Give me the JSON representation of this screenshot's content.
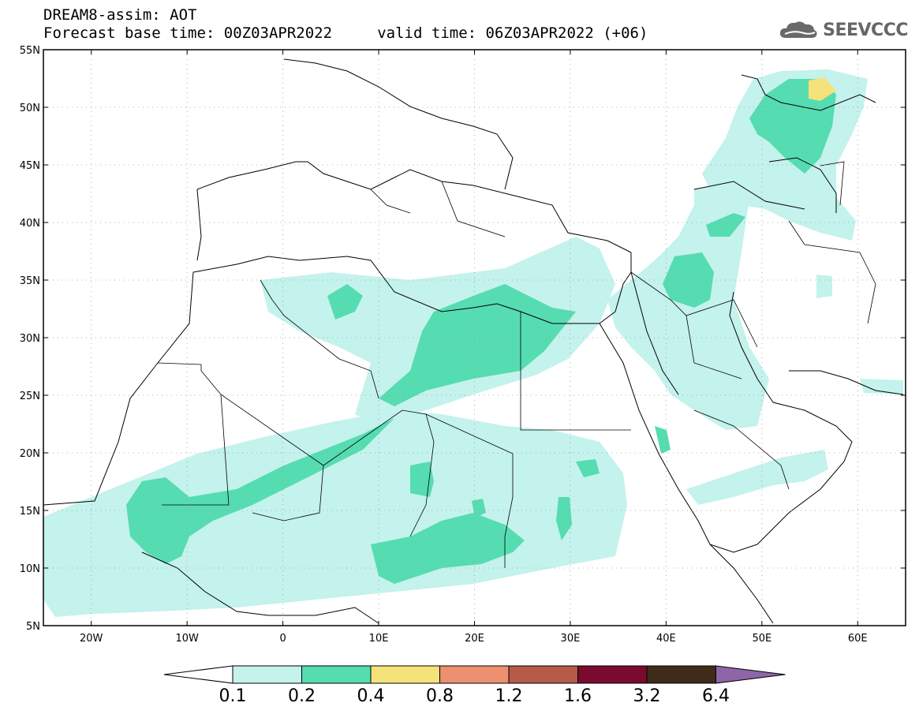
{
  "title": {
    "line1": "DREAM8-assim: AOT",
    "line2": "Forecast base time: 00Z03APR2022     valid time: 06Z03APR2022 (+06)"
  },
  "logo": {
    "text": "SEEVCCC",
    "icon": "cloud-icon"
  },
  "map": {
    "lon_range": [
      -25,
      65
    ],
    "lat_range": [
      5,
      55
    ],
    "lat_ticks": [
      "5N",
      "10N",
      "15N",
      "20N",
      "25N",
      "30N",
      "35N",
      "40N",
      "45N",
      "50N",
      "55N"
    ],
    "lon_ticks": [
      "20W",
      "10W",
      "0",
      "10E",
      "20E",
      "30E",
      "40E",
      "50E",
      "60E"
    ],
    "grid": true
  },
  "colorbar": {
    "labels": [
      "0.1",
      "0.2",
      "0.4",
      "0.8",
      "1.2",
      "1.6",
      "3.2",
      "6.4"
    ],
    "colors": [
      "#c4f2ec",
      "#56dcb1",
      "#f5e27a",
      "#ec9070",
      "#b65a48",
      "#7a0a2e",
      "#3f2b1a",
      "#8e66a8"
    ]
  }
}
